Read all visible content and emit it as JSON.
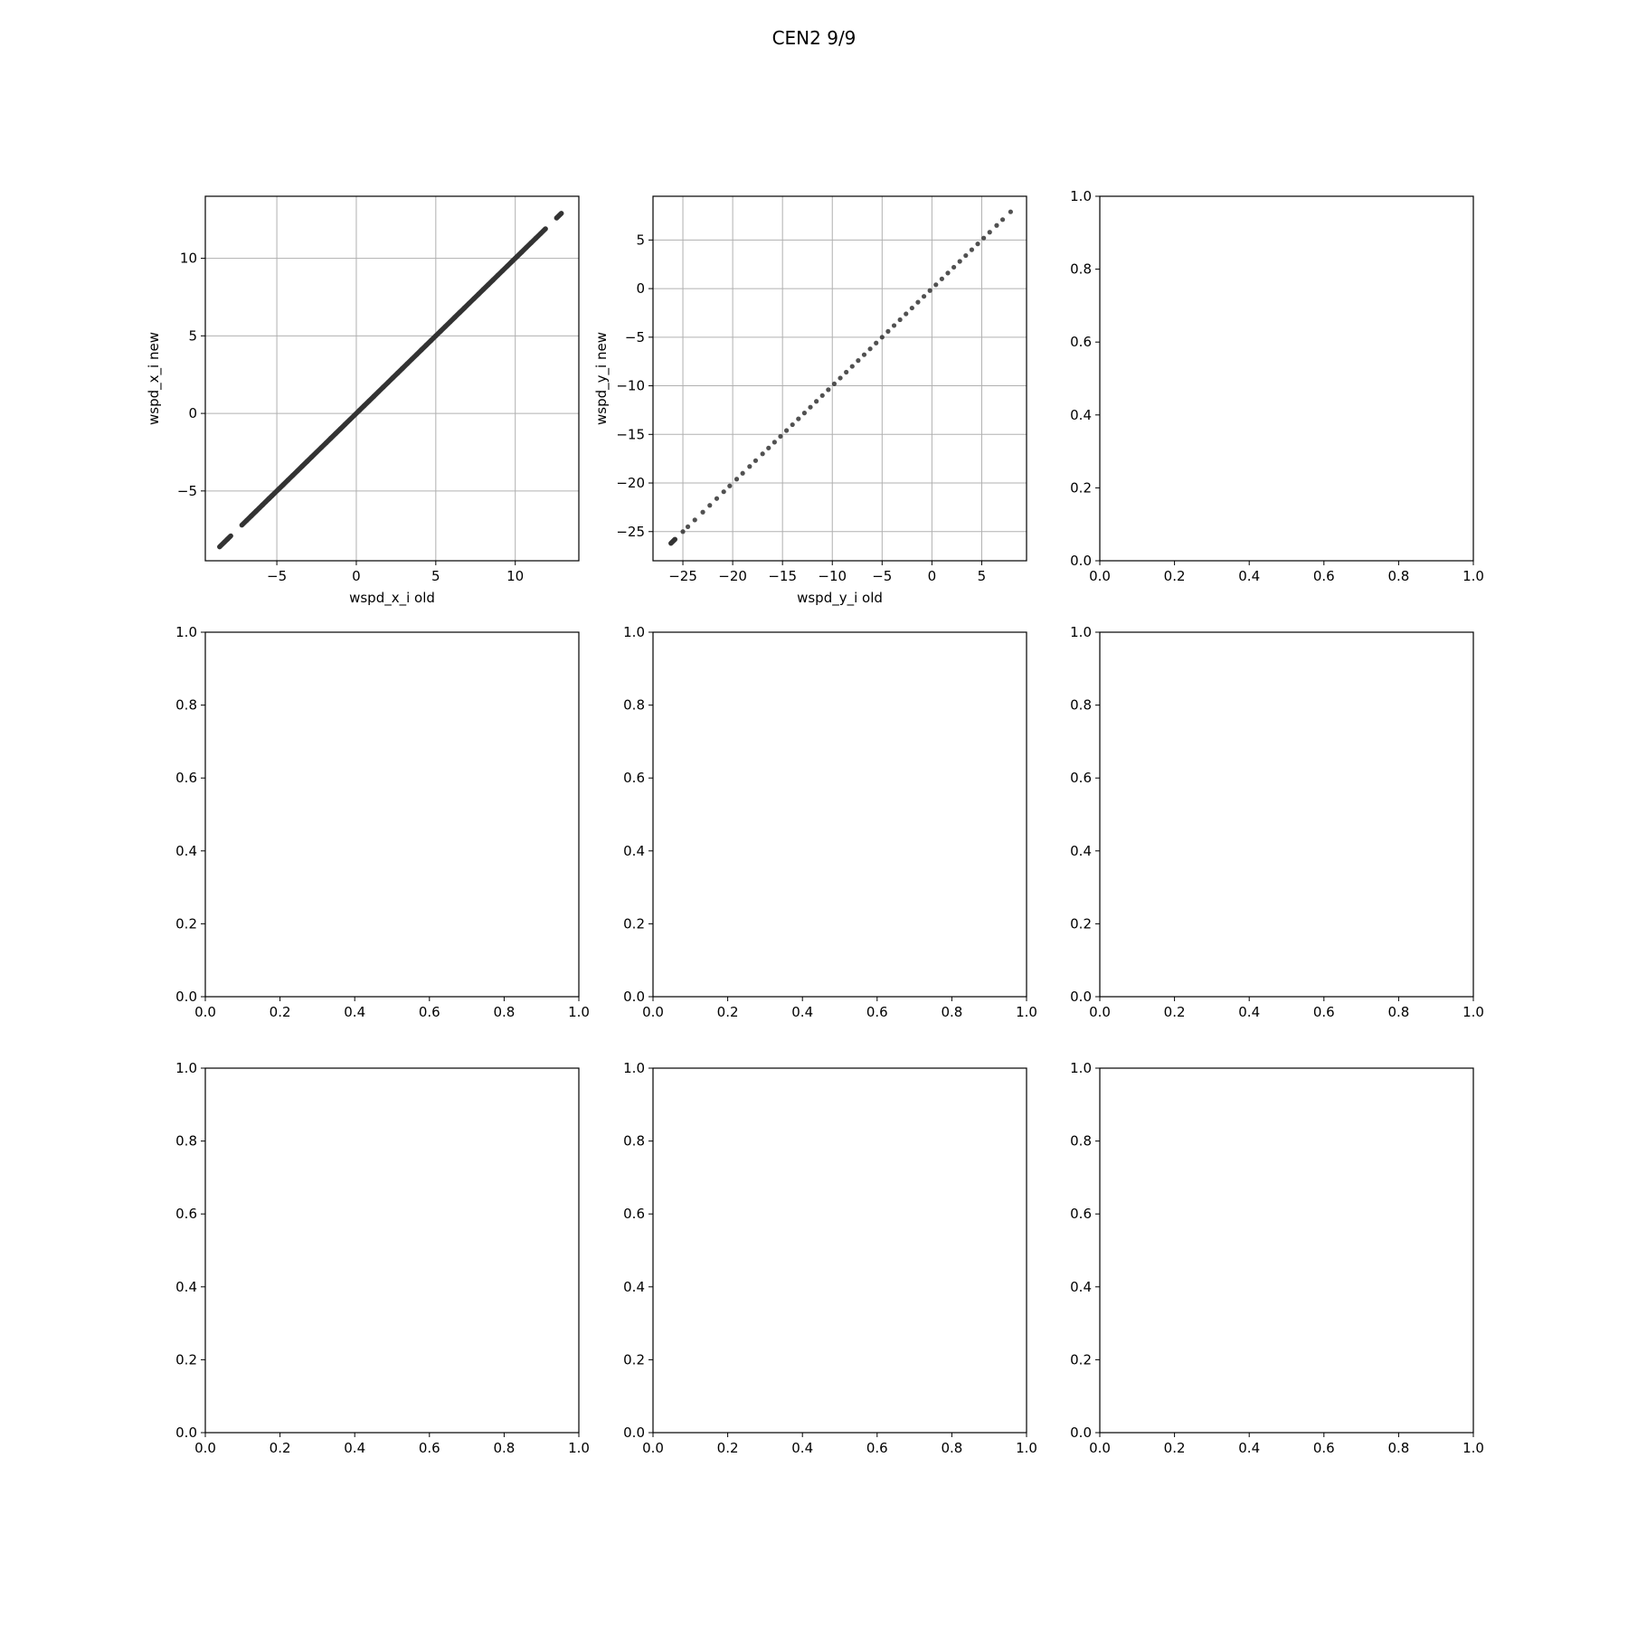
{
  "figure": {
    "title": "CEN2 9/9"
  },
  "chart_data": [
    {
      "type": "scatter",
      "title": "",
      "xlabel": "wspd_x_i old",
      "ylabel": "wspd_x_i new",
      "xlim": [
        -9.5,
        14.0
      ],
      "ylim": [
        -9.5,
        14.0
      ],
      "xticks": [
        -5,
        0,
        5,
        10
      ],
      "yticks": [
        -5,
        0,
        5,
        10
      ],
      "grid": true,
      "point_color": "#333333",
      "series": [
        {
          "x": [
            -8.6,
            -8.3,
            -8.1,
            -7.9,
            -7.2,
            -6.9,
            -6.6,
            -6.3,
            -6.1,
            -5.9,
            -5.7,
            -5.5,
            -5.3,
            -5.1,
            -4.9,
            -4.6,
            -4.3,
            -4.0,
            -3.7,
            -3.4,
            -3.1,
            -2.8,
            -2.5,
            -2.2,
            -1.9,
            -1.6,
            -1.3,
            -1.0,
            -0.7,
            -0.4,
            -0.1,
            0.2,
            0.5,
            0.8,
            1.1,
            1.4,
            1.7,
            2.0,
            2.3,
            2.6,
            2.9,
            3.2,
            3.5,
            3.8,
            4.1,
            4.4,
            4.7,
            5.0,
            5.3,
            5.6,
            5.9,
            6.2,
            6.5,
            6.8,
            7.1,
            7.4,
            7.7,
            8.0,
            8.3,
            8.6,
            8.9,
            9.2,
            9.5,
            9.8,
            10.1,
            10.4,
            10.7,
            11.0,
            11.3,
            11.6,
            11.9,
            12.6,
            12.9
          ],
          "y": [
            -8.6,
            -8.3,
            -8.1,
            -7.9,
            -7.2,
            -6.9,
            -6.6,
            -6.3,
            -6.1,
            -5.9,
            -5.7,
            -5.5,
            -5.3,
            -5.1,
            -4.9,
            -4.6,
            -4.3,
            -4.0,
            -3.7,
            -3.4,
            -3.1,
            -2.8,
            -2.5,
            -2.2,
            -1.9,
            -1.6,
            -1.3,
            -1.0,
            -0.7,
            -0.4,
            -0.1,
            0.2,
            0.5,
            0.8,
            1.1,
            1.4,
            1.7,
            2.0,
            2.3,
            2.6,
            2.9,
            3.2,
            3.5,
            3.8,
            4.1,
            4.4,
            4.7,
            5.0,
            5.3,
            5.6,
            5.9,
            6.2,
            6.5,
            6.8,
            7.1,
            7.4,
            7.7,
            8.0,
            8.3,
            8.6,
            8.9,
            9.2,
            9.5,
            9.8,
            10.1,
            10.4,
            10.7,
            11.0,
            11.3,
            11.6,
            11.9,
            12.6,
            12.9
          ]
        }
      ]
    },
    {
      "type": "scatter",
      "title": "",
      "xlabel": "wspd_y_i old",
      "ylabel": "wspd_y_i new",
      "xlim": [
        -28.0,
        9.5
      ],
      "ylim": [
        -28.0,
        9.5
      ],
      "xticks": [
        -25,
        -20,
        -15,
        -10,
        -5,
        0,
        5
      ],
      "yticks": [
        -25,
        -20,
        -15,
        -10,
        -5,
        0,
        5
      ],
      "grid": true,
      "point_color": "#333333",
      "series": [
        {
          "x": [
            -26.2,
            -25.8,
            -25.0,
            -24.5,
            -23.8,
            -23.0,
            -22.3,
            -21.6,
            -20.9,
            -20.3,
            -19.6,
            -19.0,
            -18.3,
            -17.7,
            -17.0,
            -16.4,
            -15.8,
            -15.2,
            -14.6,
            -14.0,
            -13.4,
            -12.8,
            -12.2,
            -11.6,
            -11.0,
            -10.4,
            -9.8,
            -9.2,
            -8.6,
            -8.0,
            -7.4,
            -6.8,
            -6.2,
            -5.6,
            -5.0,
            -4.4,
            -3.8,
            -3.2,
            -2.6,
            -2.0,
            -1.4,
            -0.8,
            -0.2,
            0.4,
            1.0,
            1.6,
            2.2,
            2.8,
            3.4,
            4.0,
            4.6,
            5.2,
            5.8,
            6.5,
            7.1,
            7.9
          ],
          "y": [
            -26.2,
            -25.8,
            -25.0,
            -24.5,
            -23.8,
            -23.0,
            -22.3,
            -21.6,
            -20.9,
            -20.3,
            -19.6,
            -19.0,
            -18.3,
            -17.7,
            -17.0,
            -16.4,
            -15.8,
            -15.2,
            -14.6,
            -14.0,
            -13.4,
            -12.8,
            -12.2,
            -11.6,
            -11.0,
            -10.4,
            -9.8,
            -9.2,
            -8.6,
            -8.0,
            -7.4,
            -6.8,
            -6.2,
            -5.6,
            -5.0,
            -4.4,
            -3.8,
            -3.2,
            -2.6,
            -2.0,
            -1.4,
            -0.8,
            -0.2,
            0.4,
            1.0,
            1.6,
            2.2,
            2.8,
            3.4,
            4.0,
            4.6,
            5.2,
            5.8,
            6.5,
            7.1,
            7.9
          ]
        }
      ]
    },
    {
      "type": "scatter",
      "title": "",
      "xlabel": "",
      "ylabel": "",
      "xlim": [
        0,
        1
      ],
      "ylim": [
        0,
        1
      ],
      "xticks": [
        0.0,
        0.2,
        0.4,
        0.6,
        0.8,
        1.0
      ],
      "yticks": [
        0.0,
        0.2,
        0.4,
        0.6,
        0.8,
        1.0
      ],
      "grid": false,
      "series": []
    },
    {
      "type": "scatter",
      "title": "",
      "xlabel": "",
      "ylabel": "",
      "xlim": [
        0,
        1
      ],
      "ylim": [
        0,
        1
      ],
      "xticks": [
        0.0,
        0.2,
        0.4,
        0.6,
        0.8,
        1.0
      ],
      "yticks": [
        0.0,
        0.2,
        0.4,
        0.6,
        0.8,
        1.0
      ],
      "grid": false,
      "series": []
    },
    {
      "type": "scatter",
      "title": "",
      "xlabel": "",
      "ylabel": "",
      "xlim": [
        0,
        1
      ],
      "ylim": [
        0,
        1
      ],
      "xticks": [
        0.0,
        0.2,
        0.4,
        0.6,
        0.8,
        1.0
      ],
      "yticks": [
        0.0,
        0.2,
        0.4,
        0.6,
        0.8,
        1.0
      ],
      "grid": false,
      "series": []
    },
    {
      "type": "scatter",
      "title": "",
      "xlabel": "",
      "ylabel": "",
      "xlim": [
        0,
        1
      ],
      "ylim": [
        0,
        1
      ],
      "xticks": [
        0.0,
        0.2,
        0.4,
        0.6,
        0.8,
        1.0
      ],
      "yticks": [
        0.0,
        0.2,
        0.4,
        0.6,
        0.8,
        1.0
      ],
      "grid": false,
      "series": []
    },
    {
      "type": "scatter",
      "title": "",
      "xlabel": "",
      "ylabel": "",
      "xlim": [
        0,
        1
      ],
      "ylim": [
        0,
        1
      ],
      "xticks": [
        0.0,
        0.2,
        0.4,
        0.6,
        0.8,
        1.0
      ],
      "yticks": [
        0.0,
        0.2,
        0.4,
        0.6,
        0.8,
        1.0
      ],
      "grid": false,
      "series": []
    },
    {
      "type": "scatter",
      "title": "",
      "xlabel": "",
      "ylabel": "",
      "xlim": [
        0,
        1
      ],
      "ylim": [
        0,
        1
      ],
      "xticks": [
        0.0,
        0.2,
        0.4,
        0.6,
        0.8,
        1.0
      ],
      "yticks": [
        0.0,
        0.2,
        0.4,
        0.6,
        0.8,
        1.0
      ],
      "grid": false,
      "series": []
    },
    {
      "type": "scatter",
      "title": "",
      "xlabel": "",
      "ylabel": "",
      "xlim": [
        0,
        1
      ],
      "ylim": [
        0,
        1
      ],
      "xticks": [
        0.0,
        0.2,
        0.4,
        0.6,
        0.8,
        1.0
      ],
      "yticks": [
        0.0,
        0.2,
        0.4,
        0.6,
        0.8,
        1.0
      ],
      "grid": false,
      "series": []
    }
  ]
}
